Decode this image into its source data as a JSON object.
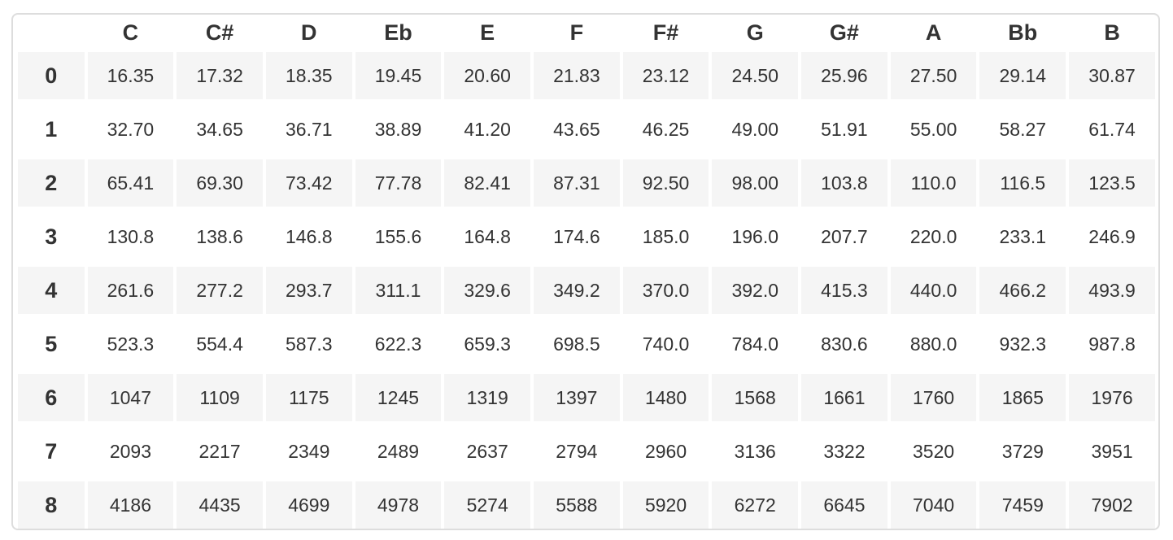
{
  "table": {
    "corner_label": "",
    "columns": [
      "C",
      "C#",
      "D",
      "Eb",
      "E",
      "F",
      "F#",
      "G",
      "G#",
      "A",
      "Bb",
      "B"
    ],
    "rows": [
      {
        "label": "0",
        "values": [
          "16.35",
          "17.32",
          "18.35",
          "19.45",
          "20.60",
          "21.83",
          "23.12",
          "24.50",
          "25.96",
          "27.50",
          "29.14",
          "30.87"
        ]
      },
      {
        "label": "1",
        "values": [
          "32.70",
          "34.65",
          "36.71",
          "38.89",
          "41.20",
          "43.65",
          "46.25",
          "49.00",
          "51.91",
          "55.00",
          "58.27",
          "61.74"
        ]
      },
      {
        "label": "2",
        "values": [
          "65.41",
          "69.30",
          "73.42",
          "77.78",
          "82.41",
          "87.31",
          "92.50",
          "98.00",
          "103.8",
          "110.0",
          "116.5",
          "123.5"
        ]
      },
      {
        "label": "3",
        "values": [
          "130.8",
          "138.6",
          "146.8",
          "155.6",
          "164.8",
          "174.6",
          "185.0",
          "196.0",
          "207.7",
          "220.0",
          "233.1",
          "246.9"
        ]
      },
      {
        "label": "4",
        "values": [
          "261.6",
          "277.2",
          "293.7",
          "311.1",
          "329.6",
          "349.2",
          "370.0",
          "392.0",
          "415.3",
          "440.0",
          "466.2",
          "493.9"
        ]
      },
      {
        "label": "5",
        "values": [
          "523.3",
          "554.4",
          "587.3",
          "622.3",
          "659.3",
          "698.5",
          "740.0",
          "784.0",
          "830.6",
          "880.0",
          "932.3",
          "987.8"
        ]
      },
      {
        "label": "6",
        "values": [
          "1047",
          "1109",
          "1175",
          "1245",
          "1319",
          "1397",
          "1480",
          "1568",
          "1661",
          "1760",
          "1865",
          "1976"
        ]
      },
      {
        "label": "7",
        "values": [
          "2093",
          "2217",
          "2349",
          "2489",
          "2637",
          "2794",
          "2960",
          "3136",
          "3322",
          "3520",
          "3729",
          "3951"
        ]
      },
      {
        "label": "8",
        "values": [
          "4186",
          "4435",
          "4699",
          "4978",
          "5274",
          "5588",
          "5920",
          "6272",
          "6645",
          "7040",
          "7459",
          "7902"
        ]
      }
    ]
  },
  "colors": {
    "stripe": "#f5f5f5",
    "border": "#dddddd",
    "text": "#333333"
  }
}
